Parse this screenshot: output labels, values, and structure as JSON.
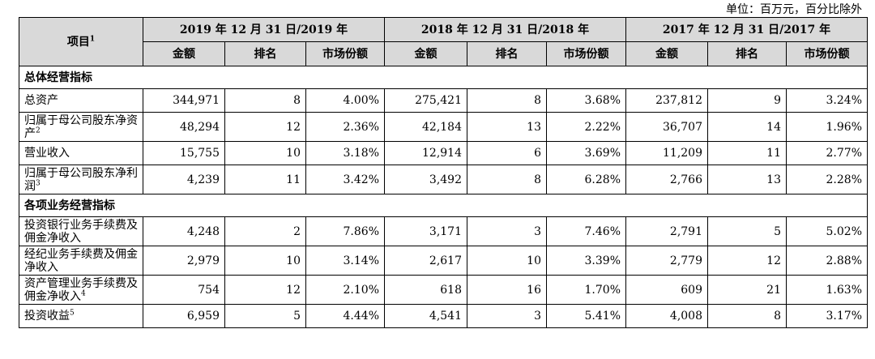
{
  "unit_note": "单位：百万元，百分比除外",
  "header": {
    "item": "项目",
    "item_sup": "1",
    "periods": [
      "2019 年 12 月 31 日/2019 年",
      "2018 年 12 月 31 日/2018 年",
      "2017 年 12 月 31 日/2017 年"
    ],
    "amount": "金额",
    "rank": "排名",
    "share": "市场份额"
  },
  "sections": [
    {
      "title": "总体经营指标",
      "rows": [
        {
          "label": "总资产",
          "sup": "",
          "values": [
            "344,971",
            "8",
            "4.00%",
            "275,421",
            "8",
            "3.68%",
            "237,812",
            "9",
            "3.24%"
          ]
        },
        {
          "label": "归属于母公司股东净资产",
          "sup": "2",
          "values": [
            "48,294",
            "12",
            "2.36%",
            "42,184",
            "13",
            "2.22%",
            "36,707",
            "14",
            "1.96%"
          ]
        },
        {
          "label": "营业收入",
          "sup": "",
          "values": [
            "15,755",
            "10",
            "3.18%",
            "12,914",
            "6",
            "3.69%",
            "11,209",
            "11",
            "2.77%"
          ]
        },
        {
          "label": "归属于母公司股东净利润",
          "sup": "3",
          "values": [
            "4,239",
            "11",
            "3.42%",
            "3,492",
            "8",
            "6.28%",
            "2,766",
            "13",
            "2.28%"
          ]
        }
      ]
    },
    {
      "title": "各项业务经营指标",
      "rows": [
        {
          "label": "投资银行业务手续费及佣金净收入",
          "sup": "",
          "values": [
            "4,248",
            "2",
            "7.86%",
            "3,171",
            "3",
            "7.46%",
            "2,791",
            "5",
            "5.02%"
          ]
        },
        {
          "label": "经纪业务手续费及佣金净收入",
          "sup": "",
          "values": [
            "2,979",
            "10",
            "3.14%",
            "2,617",
            "10",
            "3.39%",
            "2,779",
            "12",
            "2.88%"
          ]
        },
        {
          "label": "资产管理业务手续费及佣金净收入",
          "sup": "4",
          "values": [
            "754",
            "12",
            "2.10%",
            "618",
            "16",
            "1.70%",
            "609",
            "21",
            "1.63%"
          ]
        },
        {
          "label": "投资收益",
          "sup": "5",
          "values": [
            "6,959",
            "5",
            "4.44%",
            "4,541",
            "3",
            "5.41%",
            "4,008",
            "8",
            "3.17%"
          ]
        }
      ]
    }
  ]
}
